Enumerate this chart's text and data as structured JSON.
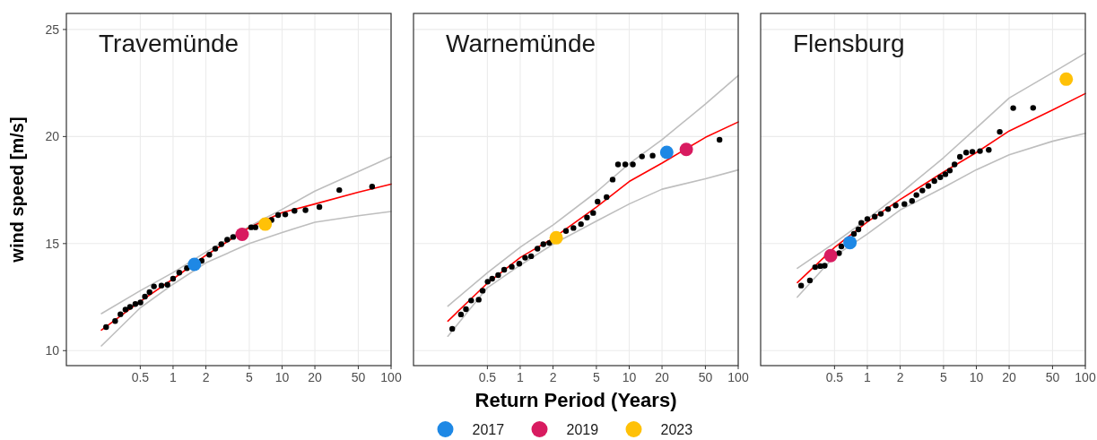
{
  "chart_data": [
    {
      "type": "scatter",
      "title": "Travemünde",
      "ylabel": "wind speed [m/s]",
      "log": "x",
      "grid": true,
      "line_style": "solid",
      "xlim": [
        0.105,
        100
      ],
      "ylim": [
        9.3,
        25.75
      ],
      "xticks": [
        0.5,
        1,
        2,
        5,
        10,
        20,
        50,
        100
      ],
      "yticks": [
        10,
        15,
        20,
        25
      ],
      "series": [
        {
          "type": "line",
          "color": "#bebebe",
          "x": [
            0.22,
            0.5,
            1,
            2,
            5,
            10,
            20,
            50,
            100
          ],
          "values": [
            11.73,
            12.8,
            13.65,
            14.6,
            15.8,
            16.6,
            17.45,
            18.36,
            19.05
          ]
        },
        {
          "type": "line",
          "color": "#bebebe",
          "x": [
            0.22,
            0.5,
            1,
            2,
            5,
            10,
            20,
            50,
            100
          ],
          "values": [
            10.22,
            12.0,
            13.1,
            14.1,
            15.0,
            15.52,
            16.0,
            16.3,
            16.5
          ]
        },
        {
          "type": "line",
          "color": "#ff0000",
          "x": [
            0.22,
            0.5,
            1,
            2,
            5,
            10,
            20,
            50,
            100
          ],
          "values": [
            10.96,
            12.3,
            13.35,
            14.45,
            15.75,
            16.45,
            16.85,
            17.4,
            17.78
          ]
        },
        {
          "marker": "circle",
          "color": "#000000",
          "x": [
            0.243,
            0.294,
            0.329,
            0.366,
            0.403,
            0.451,
            0.502,
            0.552,
            0.608,
            0.668,
            0.782,
            0.888,
            1.0,
            1.14,
            1.34,
            1.83,
            2.15,
            2.44,
            2.77,
            3.14,
            3.56,
            5.2,
            5.7,
            8.0,
            9.2,
            10.7,
            13.0,
            16.4,
            22,
            33.5,
            67
          ],
          "values": [
            11.1,
            11.38,
            11.7,
            11.92,
            12.04,
            12.18,
            12.25,
            12.52,
            12.73,
            13.0,
            13.04,
            13.08,
            13.36,
            13.64,
            13.85,
            14.2,
            14.48,
            14.76,
            14.97,
            15.18,
            15.31,
            15.76,
            15.76,
            16.1,
            16.33,
            16.36,
            16.53,
            16.56,
            16.71,
            17.5,
            17.66
          ]
        },
        {
          "marker": "circle",
          "color": "#1e88e5",
          "x": [
            1.57
          ],
          "values": [
            14.03
          ]
        },
        {
          "marker": "circle",
          "color": "#d81b60",
          "x": [
            4.3
          ],
          "values": [
            15.43
          ]
        },
        {
          "marker": "circle",
          "color": "#ffc107",
          "x": [
            7.0
          ],
          "values": [
            15.91
          ]
        }
      ]
    },
    {
      "type": "scatter",
      "title": "Warnemünde",
      "xlabel": "Return Period (Years)",
      "legend": "bottom",
      "log": "x",
      "grid": true,
      "line_style": "solid",
      "tick_labels": "x",
      "xlim": [
        0.105,
        100
      ],
      "ylim": [
        9.3,
        25.75
      ],
      "xticks": [
        0.5,
        1,
        2,
        5,
        10,
        20,
        50,
        100
      ],
      "yticks": [
        10,
        15,
        20,
        25
      ],
      "series": [
        {
          "type": "line",
          "color": "#bebebe",
          "x": [
            0.217,
            0.5,
            1,
            2,
            5,
            10,
            20,
            50,
            100
          ],
          "values": [
            12.08,
            13.64,
            14.83,
            15.87,
            17.41,
            18.73,
            19.85,
            21.52,
            22.85
          ]
        },
        {
          "type": "line",
          "color": "#bebebe",
          "x": [
            0.217,
            0.5,
            1,
            2,
            5,
            10,
            20,
            50,
            100
          ],
          "values": [
            10.67,
            12.94,
            13.99,
            14.97,
            16.05,
            16.85,
            17.54,
            18.03,
            18.44
          ]
        },
        {
          "type": "line",
          "color": "#ff0000",
          "x": [
            0.217,
            0.5,
            1,
            2,
            5,
            10,
            20,
            50,
            100
          ],
          "values": [
            11.38,
            13.15,
            14.35,
            15.25,
            16.7,
            17.9,
            18.76,
            19.96,
            20.68
          ]
        },
        {
          "marker": "circle",
          "color": "#000000",
          "x": [
            0.238,
            0.286,
            0.318,
            0.355,
            0.416,
            0.452,
            0.503,
            0.553,
            0.628,
            0.713,
            0.837,
            0.98,
            1.11,
            1.26,
            1.44,
            1.63,
            1.85,
            2.63,
            3.08,
            3.61,
            4.1,
            4.67,
            5.13,
            6.2,
            7.05,
            7.9,
            9.2,
            10.8,
            13.1,
            16.4,
            67.4
          ],
          "values": [
            11.02,
            11.69,
            11.94,
            12.34,
            12.38,
            12.8,
            13.22,
            13.36,
            13.53,
            13.78,
            13.92,
            14.06,
            14.34,
            14.41,
            14.76,
            14.97,
            15.03,
            15.59,
            15.73,
            15.91,
            16.22,
            16.43,
            16.96,
            17.17,
            17.99,
            18.7,
            18.7,
            18.7,
            19.07,
            19.11,
            19.85
          ]
        },
        {
          "marker": "circle",
          "name": "2017",
          "color": "#1e88e5",
          "x": [
            22.1
          ],
          "values": [
            19.26
          ]
        },
        {
          "marker": "circle",
          "name": "2019",
          "color": "#d81b60",
          "x": [
            33.4
          ],
          "values": [
            19.4
          ]
        },
        {
          "marker": "circle",
          "name": "2023",
          "color": "#ffc107",
          "x": [
            2.14
          ],
          "values": [
            15.27
          ]
        }
      ]
    },
    {
      "type": "scatter",
      "title": "Flensburg",
      "log": "x",
      "grid": true,
      "line_style": "solid",
      "tick_labels": "x",
      "xlim": [
        0.105,
        100
      ],
      "ylim": [
        9.3,
        25.75
      ],
      "xticks": [
        0.5,
        1,
        2,
        5,
        10,
        20,
        50,
        100
      ],
      "yticks": [
        10,
        15,
        20,
        25
      ],
      "series": [
        {
          "type": "line",
          "color": "#bebebe",
          "x": [
            0.228,
            0.5,
            1,
            2,
            5,
            10,
            20,
            50,
            100
          ],
          "values": [
            13.85,
            15.03,
            16.15,
            17.33,
            19.01,
            20.4,
            21.8,
            22.98,
            23.89
          ]
        },
        {
          "type": "line",
          "color": "#bebebe",
          "x": [
            0.228,
            0.5,
            1,
            2,
            5,
            10,
            20,
            50,
            100
          ],
          "values": [
            12.5,
            14.41,
            15.45,
            16.57,
            17.62,
            18.45,
            19.15,
            19.78,
            20.15
          ]
        },
        {
          "type": "line",
          "color": "#ff0000",
          "x": [
            0.228,
            0.5,
            1,
            2,
            5,
            10,
            20,
            50,
            100
          ],
          "values": [
            13.18,
            14.82,
            16.01,
            17.06,
            18.34,
            19.25,
            20.26,
            21.24,
            22.01
          ]
        },
        {
          "marker": "circle",
          "color": "#000000",
          "x": [
            0.247,
            0.297,
            0.332,
            0.37,
            0.406,
            0.55,
            0.578,
            0.753,
            0.828,
            0.881,
            1.0,
            1.17,
            1.33,
            1.55,
            1.82,
            2.19,
            2.57,
            2.82,
            3.2,
            3.63,
            4.12,
            4.67,
            5.2,
            5.71,
            6.31,
            7.07,
            8.07,
            9.2,
            10.8,
            13.0,
            16.4,
            21.8,
            33.2
          ],
          "values": [
            13.04,
            13.28,
            13.9,
            13.95,
            13.97,
            14.55,
            14.87,
            15.45,
            15.66,
            15.97,
            16.15,
            16.26,
            16.39,
            16.61,
            16.78,
            16.85,
            16.99,
            17.27,
            17.48,
            17.69,
            17.92,
            18.1,
            18.24,
            18.41,
            18.7,
            19.05,
            19.25,
            19.29,
            19.32,
            19.38,
            20.22,
            21.33,
            21.34
          ]
        },
        {
          "marker": "circle",
          "color": "#1e88e5",
          "x": [
            0.693
          ],
          "values": [
            15.05
          ]
        },
        {
          "marker": "circle",
          "color": "#d81b60",
          "x": [
            0.461
          ],
          "values": [
            14.44
          ]
        },
        {
          "marker": "circle",
          "color": "#ffc107",
          "x": [
            66.8
          ],
          "values": [
            22.68
          ]
        }
      ]
    }
  ]
}
